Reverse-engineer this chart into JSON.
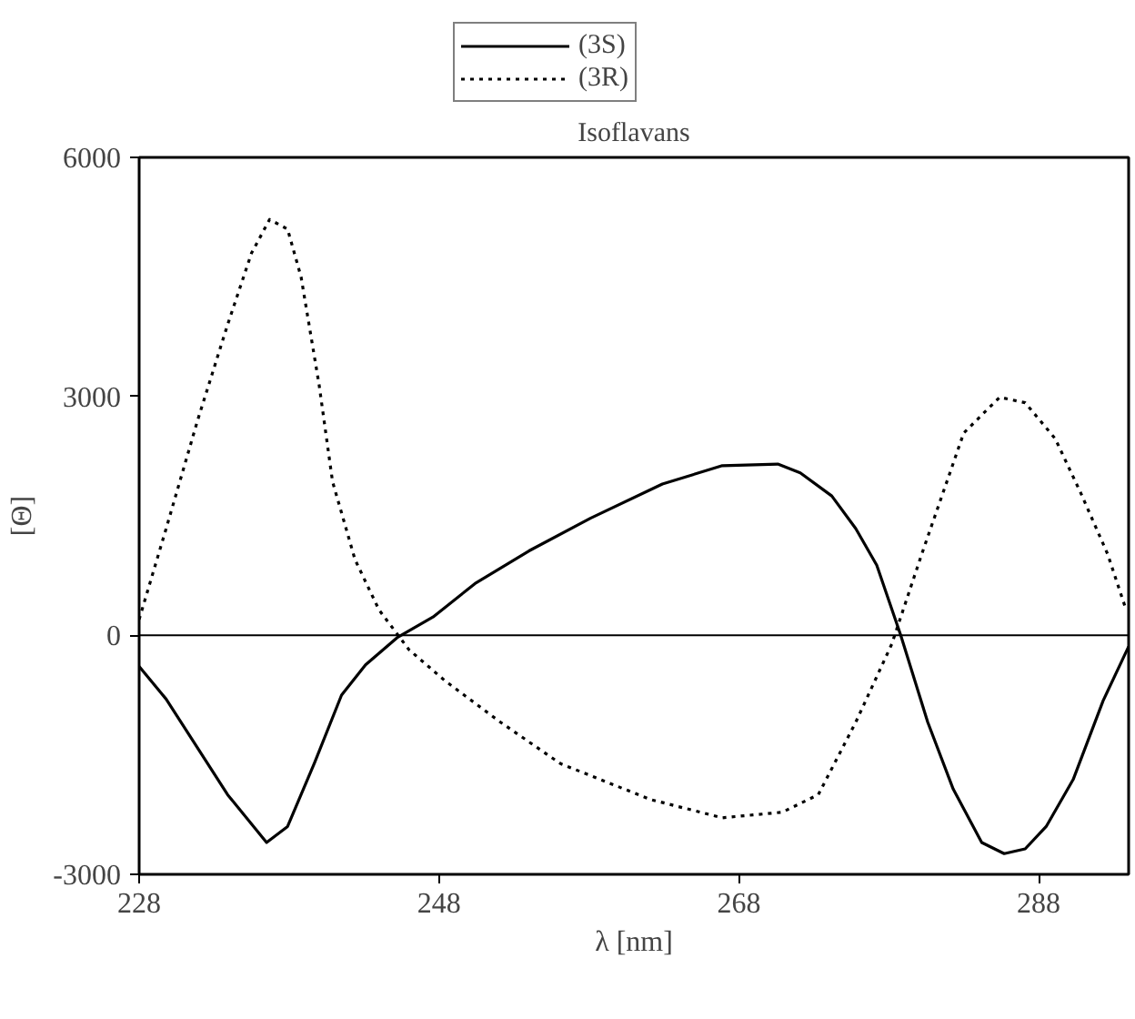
{
  "chart_data": {
    "type": "line",
    "title": "Isoflavans",
    "xlabel": "λ [nm]",
    "ylabel": "[Θ]",
    "xlim": [
      228,
      294
    ],
    "ylim": [
      -3000,
      6000
    ],
    "xticks": [
      228,
      248,
      268,
      288
    ],
    "yticks": [
      -3000,
      0,
      3000,
      6000
    ],
    "grid": false,
    "legend": "top left",
    "ref_lines": [
      {
        "axis": "y",
        "value": 0,
        "color": "#000000"
      }
    ],
    "series": [
      {
        "name": "(3S)",
        "color": "#000000",
        "line_style": "solid",
        "x": [
          228,
          229.8,
          233.9,
          236.5,
          237.9,
          239.7,
          241.5,
          243.1,
          245.2,
          247.6,
          250.4,
          254,
          258.1,
          262.9,
          266.9,
          270.6,
          272.1,
          274.2,
          275.8,
          277.2,
          278.8,
          280.6,
          282.3,
          284.2,
          285.7,
          287.1,
          288.5,
          290.3,
          292.3,
          294
        ],
        "values": [
          -390,
          -800,
          -2000,
          -2600,
          -2400,
          -1600,
          -750,
          -370,
          -30,
          230,
          650,
          1060,
          1470,
          1900,
          2130,
          2150,
          2040,
          1750,
          1340,
          880,
          0,
          -1090,
          -1930,
          -2600,
          -2740,
          -2680,
          -2400,
          -1810,
          -820,
          -140
        ]
      },
      {
        "name": "(3R)",
        "color": "#000000",
        "line_style": "dotted",
        "x": [
          228,
          229.8,
          231.9,
          233.9,
          235.5,
          236.7,
          237.9,
          238.8,
          240,
          240.9,
          242.4,
          244,
          246,
          248.4,
          252.1,
          256.1,
          262.1,
          266.9,
          270.9,
          273.3,
          275.8,
          278.2,
          280.2,
          283,
          285.4,
          287.1,
          289.1,
          290.8,
          292.6,
          293.8
        ],
        "values": [
          200,
          1340,
          2700,
          3900,
          4800,
          5220,
          5100,
          4500,
          3150,
          1930,
          950,
          320,
          -180,
          -570,
          -1090,
          -1610,
          -2060,
          -2290,
          -2220,
          -2000,
          -1090,
          -110,
          1020,
          2540,
          2990,
          2920,
          2470,
          1790,
          1020,
          340
        ]
      }
    ]
  }
}
